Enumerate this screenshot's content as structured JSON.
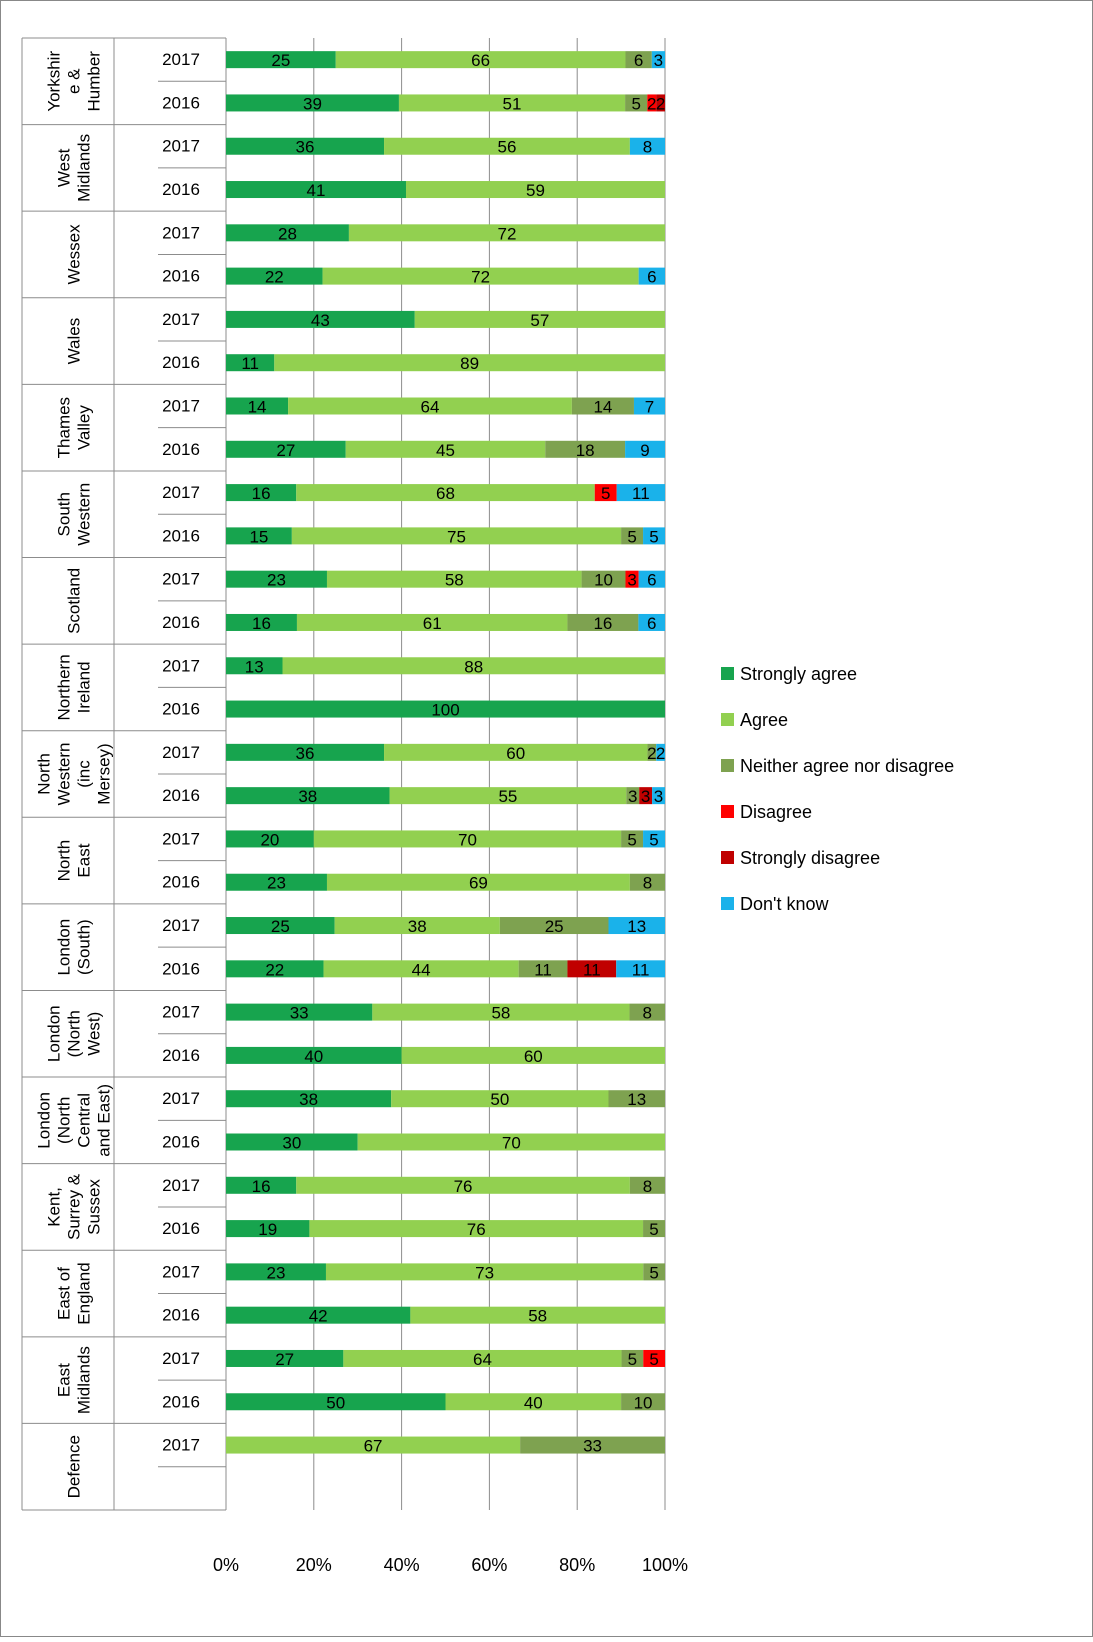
{
  "chart_data": {
    "type": "bar",
    "orientation": "horizontal",
    "stacked": "percent",
    "xlim": [
      0,
      100
    ],
    "x_ticks": [
      "0%",
      "20%",
      "40%",
      "60%",
      "80%",
      "100%"
    ],
    "grid": true,
    "legend_position": "right",
    "series": [
      {
        "name": "Strongly agree",
        "color": "#17a44e"
      },
      {
        "name": "Agree",
        "color": "#92d050"
      },
      {
        "name": "Neither agree nor disagree",
        "color": "#7ea250"
      },
      {
        "name": "Disagree",
        "color": "#ff0000"
      },
      {
        "name": "Strongly disagree",
        "color": "#c00000"
      },
      {
        "name": "Don't know",
        "color": "#1ab2ea"
      }
    ],
    "groups": [
      {
        "name": "Yorkshire & Humber",
        "label_lines": [
          "Yorkshir",
          "e &",
          "Humber"
        ],
        "rows": [
          {
            "year": "2017",
            "values": [
              25,
              66,
              6,
              0,
              0,
              3
            ]
          },
          {
            "year": "2016",
            "values": [
              39,
              51,
              5,
              2,
              2,
              0
            ]
          }
        ]
      },
      {
        "name": "West Midlands",
        "label_lines": [
          "West",
          "Midlands"
        ],
        "rows": [
          {
            "year": "2017",
            "values": [
              36,
              56,
              0,
              0,
              0,
              8
            ]
          },
          {
            "year": "2016",
            "values": [
              41,
              59,
              0,
              0,
              0,
              0
            ]
          }
        ]
      },
      {
        "name": "Wessex",
        "label_lines": [
          "Wessex"
        ],
        "rows": [
          {
            "year": "2017",
            "values": [
              28,
              72,
              0,
              0,
              0,
              0
            ]
          },
          {
            "year": "2016",
            "values": [
              22,
              72,
              0,
              0,
              0,
              6
            ]
          }
        ]
      },
      {
        "name": "Wales",
        "label_lines": [
          "Wales"
        ],
        "rows": [
          {
            "year": "2017",
            "values": [
              43,
              57,
              0,
              0,
              0,
              0
            ]
          },
          {
            "year": "2016",
            "values": [
              11,
              89,
              0,
              0,
              0,
              0
            ]
          }
        ]
      },
      {
        "name": "Thames Valley",
        "label_lines": [
          "Thames",
          "Valley"
        ],
        "rows": [
          {
            "year": "2017",
            "values": [
              14,
              64,
              14,
              0,
              0,
              7
            ]
          },
          {
            "year": "2016",
            "values": [
              27,
              45,
              18,
              0,
              0,
              9
            ]
          }
        ]
      },
      {
        "name": "South Western",
        "label_lines": [
          "South",
          "Western"
        ],
        "rows": [
          {
            "year": "2017",
            "values": [
              16,
              68,
              0,
              5,
              0,
              11
            ]
          },
          {
            "year": "2016",
            "values": [
              15,
              75,
              5,
              0,
              0,
              5
            ]
          }
        ]
      },
      {
        "name": "Scotland",
        "label_lines": [
          "Scotland"
        ],
        "rows": [
          {
            "year": "2017",
            "values": [
              23,
              58,
              10,
              3,
              0,
              6
            ]
          },
          {
            "year": "2016",
            "values": [
              16,
              61,
              16,
              0,
              0,
              6
            ]
          }
        ]
      },
      {
        "name": "Northern Ireland",
        "label_lines": [
          "Northern",
          "Ireland"
        ],
        "rows": [
          {
            "year": "2017",
            "values": [
              13,
              88,
              0,
              0,
              0,
              0
            ]
          },
          {
            "year": "2016",
            "values": [
              100,
              0,
              0,
              0,
              0,
              0
            ]
          }
        ]
      },
      {
        "name": "North Western (inc Mersey)",
        "label_lines": [
          "North",
          "Western",
          "(inc",
          "Mersey)"
        ],
        "rows": [
          {
            "year": "2017",
            "values": [
              36,
              60,
              2,
              0,
              0,
              2
            ]
          },
          {
            "year": "2016",
            "values": [
              38,
              55,
              3,
              0,
              3,
              3
            ]
          }
        ]
      },
      {
        "name": "North East",
        "label_lines": [
          "North",
          "East"
        ],
        "rows": [
          {
            "year": "2017",
            "values": [
              20,
              70,
              5,
              0,
              0,
              5
            ]
          },
          {
            "year": "2016",
            "values": [
              23,
              69,
              8,
              0,
              0,
              0
            ]
          }
        ]
      },
      {
        "name": "London (South)",
        "label_lines": [
          "London",
          "(South)"
        ],
        "rows": [
          {
            "year": "2017",
            "values": [
              25,
              38,
              25,
              0,
              0,
              13
            ]
          },
          {
            "year": "2016",
            "values": [
              22,
              44,
              11,
              0,
              11,
              11
            ]
          }
        ]
      },
      {
        "name": "London (North West)",
        "label_lines": [
          "London",
          "(North",
          "West)"
        ],
        "rows": [
          {
            "year": "2017",
            "values": [
              33,
              58,
              8,
              0,
              0,
              0
            ]
          },
          {
            "year": "2016",
            "values": [
              40,
              60,
              0,
              0,
              0,
              0
            ]
          }
        ]
      },
      {
        "name": "London (North Central and East)",
        "label_lines": [
          "London",
          "(North",
          "Central",
          "and East)"
        ],
        "rows": [
          {
            "year": "2017",
            "values": [
              38,
              50,
              13,
              0,
              0,
              0
            ]
          },
          {
            "year": "2016",
            "values": [
              30,
              70,
              0,
              0,
              0,
              0
            ]
          }
        ]
      },
      {
        "name": "Kent, Surrey & Sussex",
        "label_lines": [
          "Kent,",
          "Surrey &",
          "Sussex"
        ],
        "rows": [
          {
            "year": "2017",
            "values": [
              16,
              76,
              8,
              0,
              0,
              0
            ]
          },
          {
            "year": "2016",
            "values": [
              19,
              76,
              5,
              0,
              0,
              0
            ]
          }
        ]
      },
      {
        "name": "East of England",
        "label_lines": [
          "East of",
          "England"
        ],
        "rows": [
          {
            "year": "2017",
            "values": [
              23,
              73,
              5,
              0,
              0,
              0
            ]
          },
          {
            "year": "2016",
            "values": [
              42,
              58,
              0,
              0,
              0,
              0
            ]
          }
        ]
      },
      {
        "name": "East Midlands",
        "label_lines": [
          "East",
          "Midlands"
        ],
        "rows": [
          {
            "year": "2017",
            "values": [
              27,
              64,
              5,
              5,
              0,
              0
            ]
          },
          {
            "year": "2016",
            "values": [
              50,
              40,
              10,
              0,
              0,
              0
            ]
          }
        ]
      },
      {
        "name": "Defence",
        "label_lines": [
          "Defence"
        ],
        "rows": [
          {
            "year": "2017",
            "values": [
              0,
              67,
              33,
              0,
              0,
              0
            ]
          },
          {
            "year": "",
            "values": [
              0,
              0,
              0,
              0,
              0,
              0
            ]
          }
        ]
      }
    ]
  }
}
